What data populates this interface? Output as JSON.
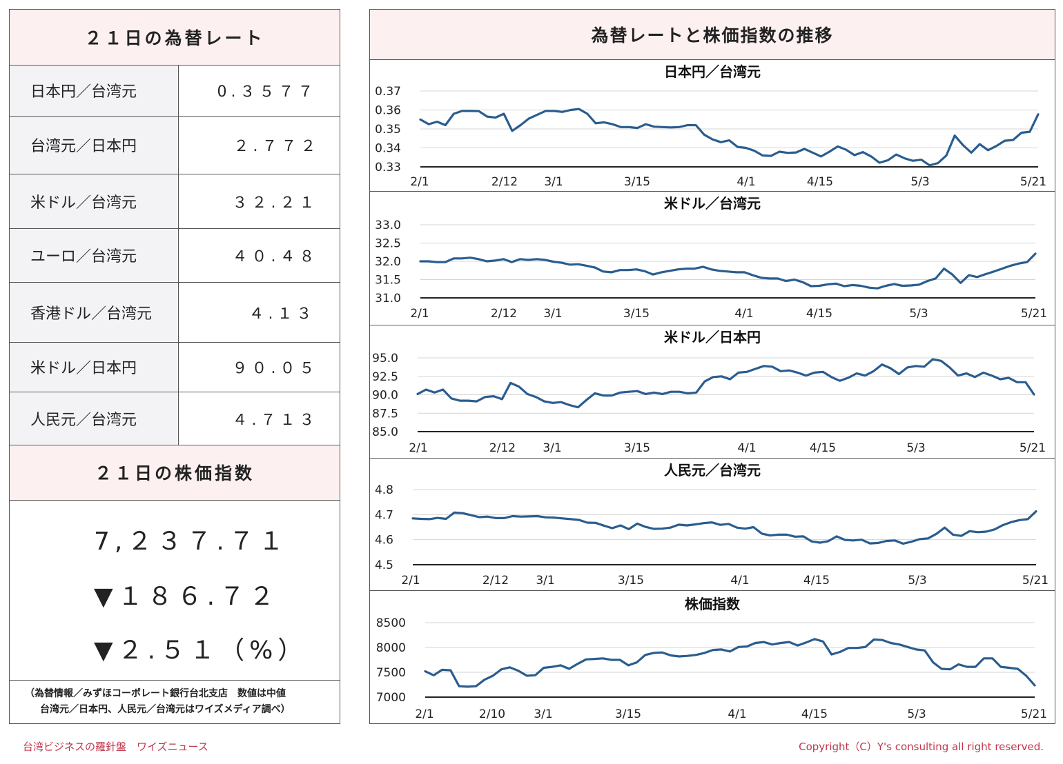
{
  "rates_panel": {
    "title": "２１日の為替レート",
    "rows": [
      {
        "name": "日本円／台湾元",
        "value": "0.３５７７"
      },
      {
        "name": "台湾元／日本円",
        "value": "２.７７２"
      },
      {
        "name": "米ドル／台湾元",
        "value": "３２.２１"
      },
      {
        "name": "ユーロ／台湾元",
        "value": "４０.４８"
      },
      {
        "name": "香港ドル／台湾元",
        "value": "４.１３"
      },
      {
        "name": "米ドル／日本円",
        "value": "９０.０５"
      },
      {
        "name": "人民元／台湾元",
        "value": "４.７１３"
      }
    ]
  },
  "stock_panel": {
    "title": "２１日の株価指数",
    "index_value": "7,２３７.７１",
    "change": "▼１８６.７２",
    "change_pct": "▼２.５１（%）"
  },
  "note": {
    "line1": "（為替情報／みずほコーポレート銀行台北支店　数値は中値",
    "line2": "台湾元／日本円、人民元／台湾元はワイズメディア調べ）"
  },
  "charts_panel": {
    "title": "為替レートと株価指数の推移"
  },
  "footer": {
    "left": "台湾ビジネスの羅針盤　ワイズニュース",
    "right": "Copyright（C）Y's consulting all right reserved."
  },
  "colors": {
    "line": "#2a5d8f",
    "header_bg": "#fdf0f0",
    "label_bg": "#f3f3f5",
    "footer": "#c0354a"
  },
  "chart_data": [
    {
      "type": "line",
      "title": "日本円／台湾元",
      "ylim": [
        0.33,
        0.37
      ],
      "yticks": [
        "0.37",
        "0.36",
        "0.35",
        "0.34",
        "0.33"
      ],
      "xticks": [
        "2/1",
        "2/12",
        "3/1",
        "3/15",
        "4/1",
        "4/15",
        "5/3",
        "5/21"
      ],
      "grid": true,
      "values": [
        0.355,
        0.3525,
        0.3538,
        0.352,
        0.358,
        0.3595,
        0.3595,
        0.3594,
        0.3565,
        0.356,
        0.358,
        0.349,
        0.352,
        0.3555,
        0.3575,
        0.3595,
        0.3595,
        0.359,
        0.36,
        0.3605,
        0.358,
        0.353,
        0.3535,
        0.3525,
        0.351,
        0.351,
        0.3505,
        0.3525,
        0.3512,
        0.351,
        0.3508,
        0.351,
        0.352,
        0.352,
        0.347,
        0.3445,
        0.343,
        0.344,
        0.3405,
        0.34,
        0.3385,
        0.336,
        0.3358,
        0.338,
        0.3374,
        0.3376,
        0.3395,
        0.3375,
        0.3355,
        0.338,
        0.3408,
        0.339,
        0.3362,
        0.3378,
        0.3355,
        0.3322,
        0.3335,
        0.3365,
        0.3345,
        0.3332,
        0.3338,
        0.3308,
        0.332,
        0.336,
        0.3465,
        0.3415,
        0.3375,
        0.342,
        0.3388,
        0.341,
        0.3438,
        0.3442,
        0.348,
        0.3485,
        0.3577
      ]
    },
    {
      "type": "line",
      "title": "米ドル／台湾元",
      "ylim": [
        31.0,
        33.0
      ],
      "yticks": [
        "33.0",
        "32.5",
        "32.0",
        "31.5",
        "31.0"
      ],
      "xticks": [
        "2/1",
        "2/12",
        "3/1",
        "3/15",
        "4/1",
        "4/15",
        "5/3",
        "5/21"
      ],
      "grid": true,
      "values": [
        32.0,
        32.0,
        31.98,
        31.98,
        32.08,
        32.08,
        32.1,
        32.06,
        32.0,
        32.02,
        32.06,
        31.98,
        32.06,
        32.04,
        32.06,
        32.04,
        31.99,
        31.96,
        31.91,
        31.92,
        31.88,
        31.83,
        31.72,
        31.7,
        31.76,
        31.76,
        31.78,
        31.73,
        31.64,
        31.7,
        31.74,
        31.78,
        31.8,
        31.8,
        31.85,
        31.78,
        31.74,
        31.72,
        31.7,
        31.7,
        31.62,
        31.55,
        31.53,
        31.53,
        31.46,
        31.5,
        31.43,
        31.32,
        31.33,
        31.37,
        31.39,
        31.32,
        31.35,
        31.33,
        31.28,
        31.26,
        31.33,
        31.38,
        31.33,
        31.34,
        31.36,
        31.46,
        31.53,
        31.8,
        31.64,
        31.41,
        31.62,
        31.57,
        31.65,
        31.72,
        31.8,
        31.88,
        31.94,
        31.98,
        32.21
      ]
    },
    {
      "type": "line",
      "title": "米ドル／日本円",
      "ylim": [
        85.0,
        95.0
      ],
      "yticks": [
        "95.0",
        "92.5",
        "90.0",
        "87.5",
        "85.0"
      ],
      "xticks": [
        "2/1",
        "2/12",
        "3/1",
        "3/15",
        "4/1",
        "4/15",
        "5/3",
        "5/21"
      ],
      "grid": true,
      "values": [
        90.1,
        90.7,
        90.3,
        90.7,
        89.5,
        89.2,
        89.2,
        89.1,
        89.7,
        89.8,
        89.4,
        91.6,
        91.1,
        90.1,
        89.7,
        89.1,
        88.9,
        89.0,
        88.6,
        88.3,
        89.3,
        90.2,
        89.9,
        89.9,
        90.3,
        90.4,
        90.5,
        90.1,
        90.3,
        90.1,
        90.4,
        90.4,
        90.2,
        90.3,
        91.8,
        92.4,
        92.5,
        92.1,
        93.0,
        93.1,
        93.5,
        93.9,
        93.8,
        93.2,
        93.3,
        93.0,
        92.6,
        93.0,
        93.1,
        92.4,
        91.9,
        92.3,
        92.9,
        92.6,
        93.2,
        94.1,
        93.6,
        92.8,
        93.7,
        93.9,
        93.8,
        94.8,
        94.6,
        93.7,
        92.6,
        92.9,
        92.4,
        93.0,
        92.6,
        92.1,
        92.3,
        91.7,
        91.7,
        90.05
      ]
    },
    {
      "type": "line",
      "title": "人民元／台湾元",
      "ylim": [
        4.5,
        4.8
      ],
      "yticks": [
        "4.8",
        "4.7",
        "4.6",
        "4.5"
      ],
      "xticks": [
        "2/1",
        "2/12",
        "3/1",
        "3/15",
        "4/1",
        "4/15",
        "5/3",
        "5/21"
      ],
      "grid": true,
      "values": [
        4.685,
        4.683,
        4.682,
        4.687,
        4.683,
        4.708,
        4.706,
        4.698,
        4.69,
        4.692,
        4.686,
        4.686,
        4.694,
        4.692,
        4.693,
        4.694,
        4.689,
        4.688,
        4.685,
        4.682,
        4.679,
        4.668,
        4.667,
        4.656,
        4.646,
        4.657,
        4.642,
        4.664,
        4.651,
        4.643,
        4.644,
        4.648,
        4.66,
        4.657,
        4.661,
        4.666,
        4.669,
        4.659,
        4.663,
        4.648,
        4.644,
        4.65,
        4.624,
        4.617,
        4.62,
        4.62,
        4.612,
        4.613,
        4.593,
        4.588,
        4.594,
        4.613,
        4.599,
        4.597,
        4.6,
        4.585,
        4.587,
        4.595,
        4.597,
        4.584,
        4.592,
        4.602,
        4.605,
        4.623,
        4.648,
        4.62,
        4.615,
        4.634,
        4.63,
        4.632,
        4.641,
        4.658,
        4.67,
        4.678,
        4.682,
        4.713
      ]
    },
    {
      "type": "line",
      "title": "株価指数",
      "ylim": [
        7000,
        8500
      ],
      "yticks": [
        "8500",
        "8000",
        "7500",
        "7000"
      ],
      "xticks": [
        "2/1",
        "2/10",
        "3/1",
        "3/15",
        "4/1",
        "4/15",
        "5/3",
        "5/21"
      ],
      "grid": true,
      "values": [
        7520,
        7440,
        7550,
        7540,
        7220,
        7210,
        7220,
        7350,
        7430,
        7560,
        7600,
        7530,
        7430,
        7440,
        7590,
        7610,
        7640,
        7570,
        7670,
        7760,
        7770,
        7780,
        7750,
        7750,
        7640,
        7700,
        7850,
        7890,
        7900,
        7840,
        7820,
        7830,
        7850,
        7890,
        7950,
        7960,
        7920,
        8010,
        8020,
        8090,
        8110,
        8060,
        8090,
        8110,
        8040,
        8100,
        8170,
        8120,
        7860,
        7910,
        7990,
        7990,
        8010,
        8160,
        8150,
        8090,
        8060,
        8010,
        7960,
        7940,
        7700,
        7570,
        7560,
        7660,
        7610,
        7610,
        7780,
        7780,
        7610,
        7590,
        7570,
        7430,
        7237.71
      ]
    }
  ]
}
